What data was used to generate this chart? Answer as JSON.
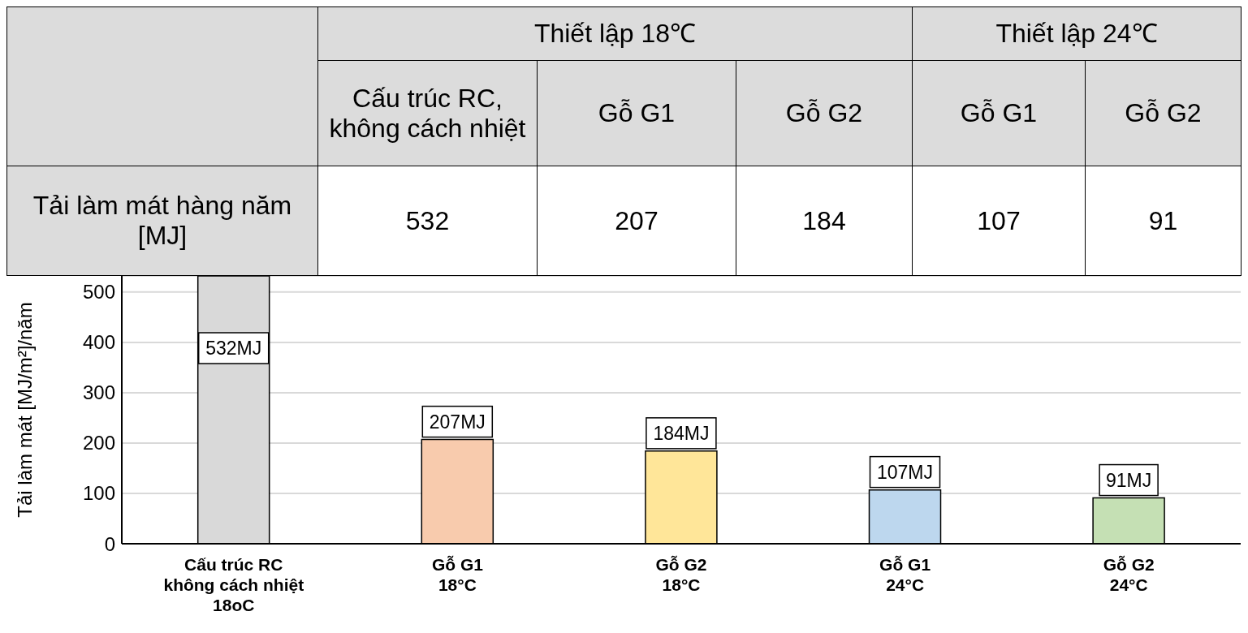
{
  "chart_data": {
    "type": "bar",
    "ylabel": "Tải làm mát [MJ/m²]/năm",
    "categories": [
      "Cấu trúc RC\nkhông cách nhiệt\n18oC",
      "Gỗ G1\n18°C",
      "Gỗ G2\n18°C",
      "Gỗ G1\n24°C",
      "Gỗ G2\n24°C"
    ],
    "values": [
      532,
      207,
      184,
      107,
      91
    ],
    "colors": [
      "#d9d9d9",
      "#f8cbad",
      "#ffe699",
      "#bdd7ee",
      "#c5e0b4"
    ],
    "value_labels": [
      "532MJ",
      "207MJ",
      "184MJ",
      "107MJ",
      "91MJ"
    ],
    "annotations": [
      "Thiết lập 18℃",
      "Thiết lập 24℃",
      "Cấu trúc RC, không cách nhiệt",
      "Gỗ G1",
      "Gỗ G2",
      "Gỗ G1",
      "Gỗ G2",
      "Tải làm mát hàng năm [MJ]",
      "532",
      "207",
      "184",
      "107",
      "91"
    ],
    "ylim": [
      0,
      532
    ],
    "yticks": [
      0,
      100,
      200,
      300,
      400,
      500
    ],
    "grid": "y",
    "legend": false
  }
}
